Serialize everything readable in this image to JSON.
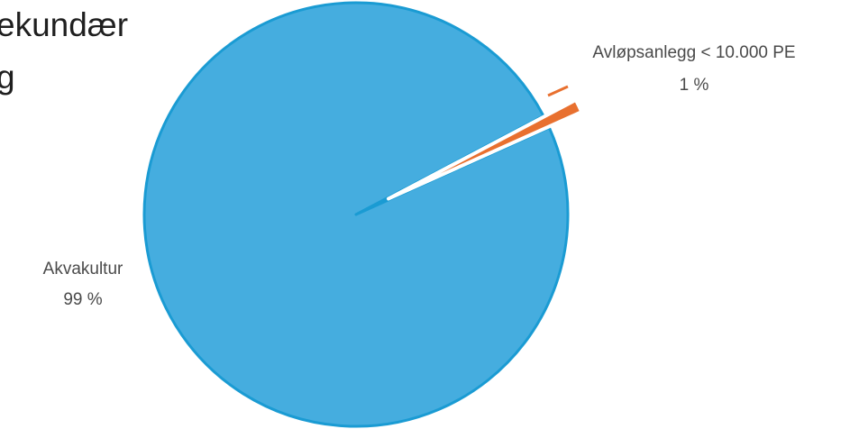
{
  "chart_data": {
    "type": "pie",
    "title_lines": [
      "ekundær",
      "g"
    ],
    "slices": [
      {
        "name": "Akvakultur",
        "value": 99,
        "label": "99 %",
        "color": "#45ADDF"
      },
      {
        "name": "Avløpsanlegg < 10.000 PE",
        "value": 1,
        "label": "1 %",
        "color": "#E8702F"
      }
    ],
    "exploded_slice": "Avløpsanlegg < 10.000 PE",
    "border_color": "#1A9BD3"
  }
}
